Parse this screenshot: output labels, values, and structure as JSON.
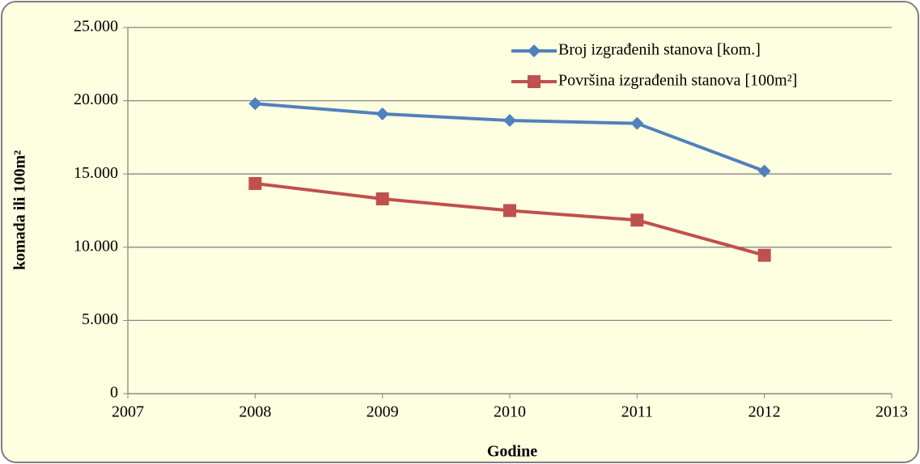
{
  "chart_data": {
    "type": "line",
    "x": [
      2008,
      2009,
      2010,
      2011,
      2012
    ],
    "series": [
      {
        "name": "Broj izgrađenih stanova [kom.]",
        "color": "#4f81bd",
        "marker": "diamond",
        "values": [
          19800,
          19100,
          18650,
          18450,
          15200
        ]
      },
      {
        "name": "Površina izgrađenih stanova [100m²]",
        "color": "#c0504d",
        "marker": "square",
        "values": [
          14350,
          13300,
          12500,
          11850,
          9450
        ]
      }
    ],
    "xlabel": "Godine",
    "ylabel": "komada ili 100m²",
    "xlim": [
      2007,
      2013
    ],
    "xticks": [
      2007,
      2008,
      2009,
      2010,
      2011,
      2012,
      2013
    ],
    "ylim": [
      0,
      25000
    ],
    "yticks": [
      0,
      {
        "value": 5000,
        "label": "5.000"
      },
      {
        "value": 10000,
        "label": "10.000"
      },
      {
        "value": 15000,
        "label": "15.000"
      },
      {
        "value": 20000,
        "label": "20.000"
      },
      {
        "value": 25000,
        "label": "25.000"
      }
    ],
    "grid": true,
    "legend": "upper right"
  }
}
